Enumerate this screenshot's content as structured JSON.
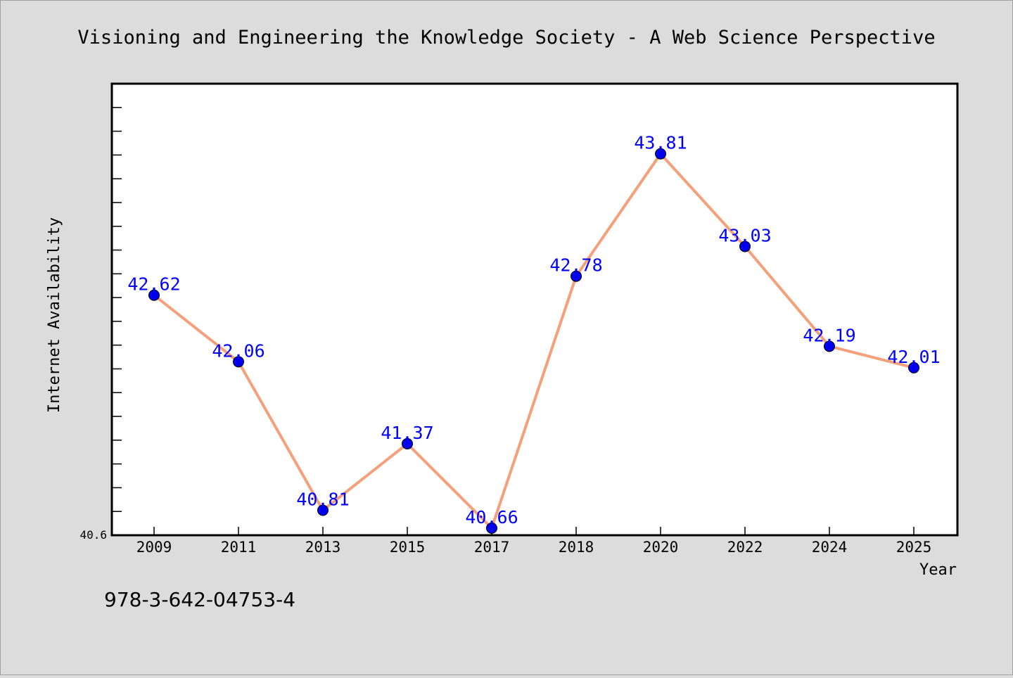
{
  "chart_data": {
    "type": "line",
    "title": "Visioning and Engineering the Knowledge Society - A Web Science Perspective",
    "xlabel": "Year",
    "ylabel": "Internet Availability",
    "categories": [
      "2009",
      "2011",
      "2013",
      "2015",
      "2017",
      "2018",
      "2020",
      "2022",
      "2024",
      "2025"
    ],
    "series": [
      {
        "values": [
          42.62,
          42.06,
          40.81,
          41.37,
          40.66,
          42.78,
          43.81,
          43.03,
          42.19,
          42.01
        ],
        "labels": [
          "42.62",
          "42.06",
          "40.81",
          "41.37",
          "40.66",
          "42.78",
          "43.81",
          "43.03",
          "42.19",
          "42.01"
        ]
      }
    ],
    "ylim": [
      40.6,
      44.4
    ],
    "y_min_label": "40.6",
    "grid": false,
    "colors": {
      "line": "#f4a07a",
      "marker": "#0000ee",
      "data_label": "#0000ff",
      "plot_background": "#ffffff",
      "page_background": "#dcdcdc"
    }
  },
  "footer": {
    "isbn": "978-3-642-04753-4"
  }
}
